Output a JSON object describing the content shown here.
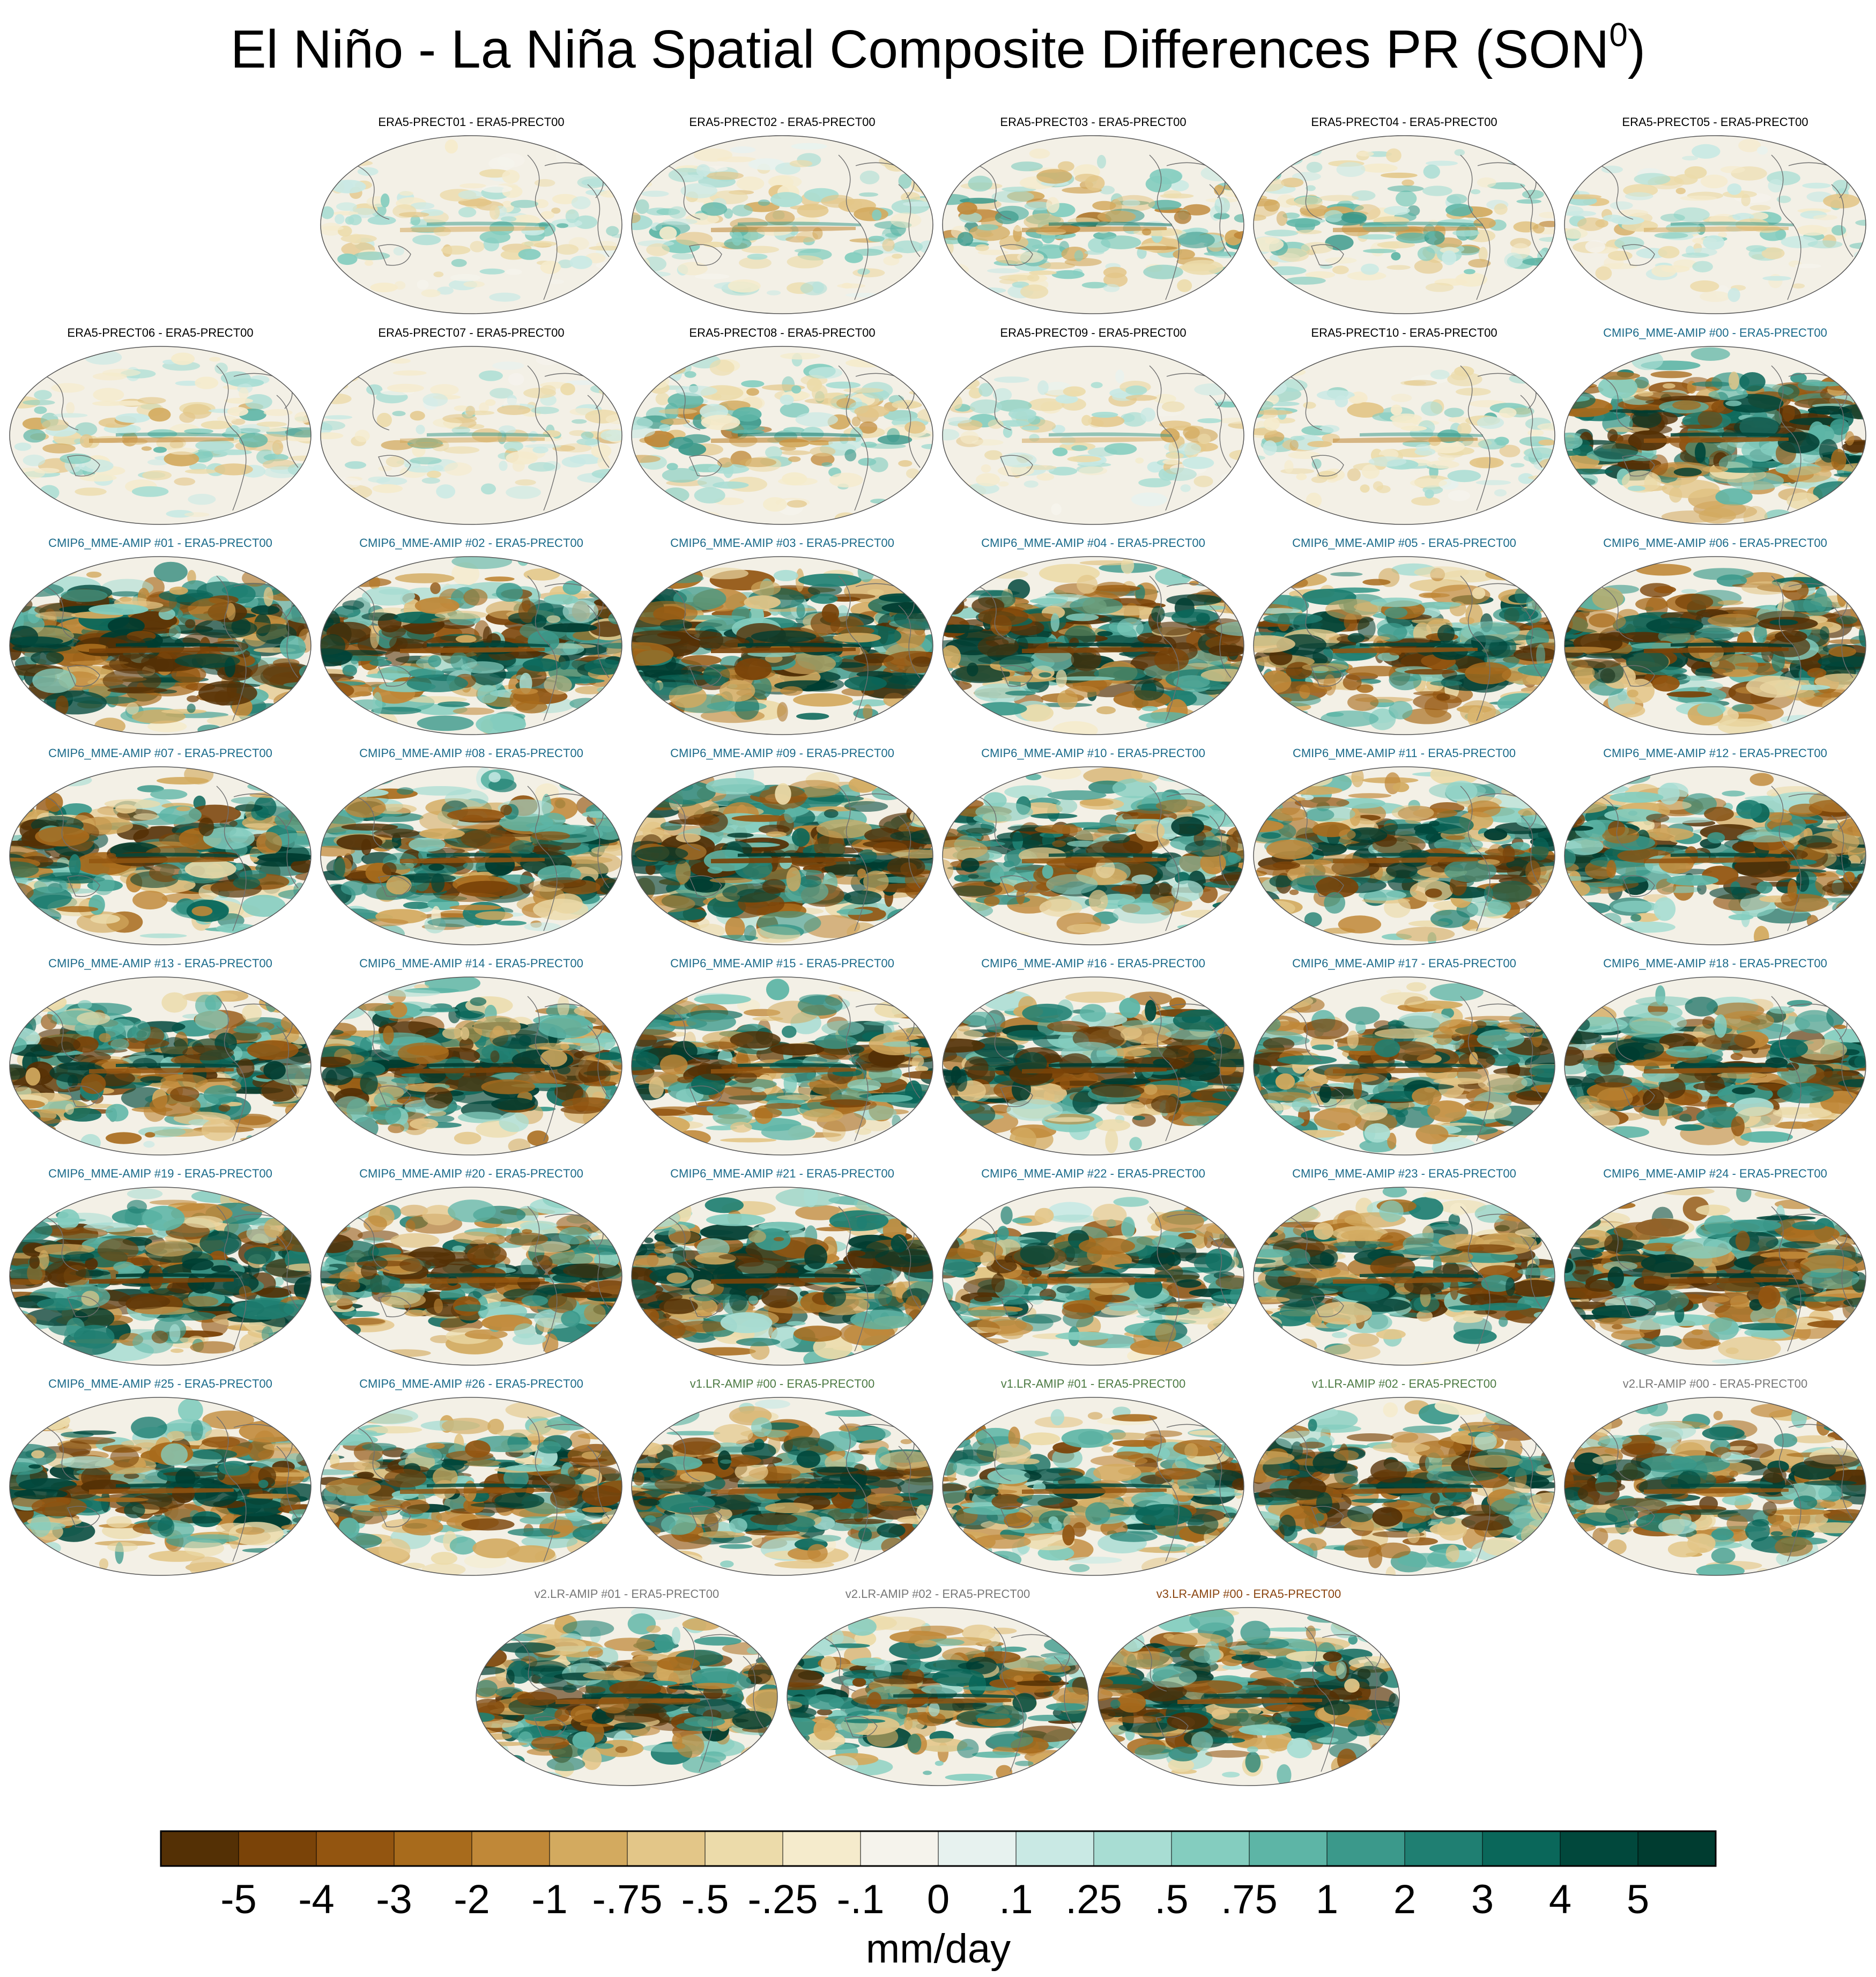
{
  "chart_data": {
    "type": "heatmap",
    "title": "El Niño - La Niña Spatial Composite Differences PR (SON",
    "title_superscript": "0",
    "title_close": ")",
    "projection": "Robinson (Pacific-centered global map)",
    "colorbar": {
      "unit": "mm/day",
      "tick_labels": [
        "-5",
        "-4",
        "-3",
        "-2",
        "-1",
        "-.75",
        "-.5",
        "-.25",
        "-.1",
        "0",
        ".1",
        ".25",
        ".5",
        ".75",
        "1",
        "2",
        "3",
        "4",
        "5"
      ],
      "colors": [
        "#543005",
        "#7a4308",
        "#935510",
        "#a86b1c",
        "#c08838",
        "#d3aa5f",
        "#e3c688",
        "#ecdbaa",
        "#f5ebcc",
        "#f5f3ec",
        "#e7f2ef",
        "#c9e9e4",
        "#a8ddd3",
        "#84cdbf",
        "#5db5a6",
        "#3b998b",
        "#1f7f72",
        "#0a675a",
        "#01483c",
        "#003c30"
      ]
    },
    "panels": [
      {
        "label": "ERA5-PRECT01 - ERA5-PRECT00",
        "group": "ERA5",
        "intensity": 0.3
      },
      {
        "label": "ERA5-PRECT02 - ERA5-PRECT00",
        "group": "ERA5",
        "intensity": 0.35
      },
      {
        "label": "ERA5-PRECT03 - ERA5-PRECT00",
        "group": "ERA5",
        "intensity": 0.45
      },
      {
        "label": "ERA5-PRECT04 - ERA5-PRECT00",
        "group": "ERA5",
        "intensity": 0.4
      },
      {
        "label": "ERA5-PRECT05 - ERA5-PRECT00",
        "group": "ERA5",
        "intensity": 0.3
      },
      {
        "label": "ERA5-PRECT06 - ERA5-PRECT00",
        "group": "ERA5",
        "intensity": 0.35
      },
      {
        "label": "ERA5-PRECT07 - ERA5-PRECT00",
        "group": "ERA5",
        "intensity": 0.3
      },
      {
        "label": "ERA5-PRECT08 - ERA5-PRECT00",
        "group": "ERA5",
        "intensity": 0.45
      },
      {
        "label": "ERA5-PRECT09 - ERA5-PRECT00",
        "group": "ERA5",
        "intensity": 0.3
      },
      {
        "label": "ERA5-PRECT10 - ERA5-PRECT00",
        "group": "ERA5",
        "intensity": 0.35
      },
      {
        "label": "CMIP6_MME-AMIP  #00 - ERA5-PRECT00",
        "group": "CMIP6",
        "intensity": 0.9
      },
      {
        "label": "CMIP6_MME-AMIP  #01 - ERA5-PRECT00",
        "group": "CMIP6",
        "intensity": 1.0
      },
      {
        "label": "CMIP6_MME-AMIP  #02 - ERA5-PRECT00",
        "group": "CMIP6",
        "intensity": 0.9
      },
      {
        "label": "CMIP6_MME-AMIP  #03 - ERA5-PRECT00",
        "group": "CMIP6",
        "intensity": 1.0
      },
      {
        "label": "CMIP6_MME-AMIP  #04 - ERA5-PRECT00",
        "group": "CMIP6",
        "intensity": 0.95
      },
      {
        "label": "CMIP6_MME-AMIP  #05 - ERA5-PRECT00",
        "group": "CMIP6",
        "intensity": 0.9
      },
      {
        "label": "CMIP6_MME-AMIP  #06 - ERA5-PRECT00",
        "group": "CMIP6",
        "intensity": 0.95
      },
      {
        "label": "CMIP6_MME-AMIP  #07 - ERA5-PRECT00",
        "group": "CMIP6",
        "intensity": 0.85
      },
      {
        "label": "CMIP6_MME-AMIP  #08 - ERA5-PRECT00",
        "group": "CMIP6",
        "intensity": 0.9
      },
      {
        "label": "CMIP6_MME-AMIP  #09 - ERA5-PRECT00",
        "group": "CMIP6",
        "intensity": 1.0
      },
      {
        "label": "CMIP6_MME-AMIP  #10 - ERA5-PRECT00",
        "group": "CMIP6",
        "intensity": 0.85
      },
      {
        "label": "CMIP6_MME-AMIP  #11 - ERA5-PRECT00",
        "group": "CMIP6",
        "intensity": 0.85
      },
      {
        "label": "CMIP6_MME-AMIP  #12 - ERA5-PRECT00",
        "group": "CMIP6",
        "intensity": 0.9
      },
      {
        "label": "CMIP6_MME-AMIP  #13 - ERA5-PRECT00",
        "group": "CMIP6",
        "intensity": 0.9
      },
      {
        "label": "CMIP6_MME-AMIP  #14 - ERA5-PRECT00",
        "group": "CMIP6",
        "intensity": 0.95
      },
      {
        "label": "CMIP6_MME-AMIP  #15 - ERA5-PRECT00",
        "group": "CMIP6",
        "intensity": 0.85
      },
      {
        "label": "CMIP6_MME-AMIP  #16 - ERA5-PRECT00",
        "group": "CMIP6",
        "intensity": 0.95
      },
      {
        "label": "CMIP6_MME-AMIP  #17 - ERA5-PRECT00",
        "group": "CMIP6",
        "intensity": 0.85
      },
      {
        "label": "CMIP6_MME-AMIP  #18 - ERA5-PRECT00",
        "group": "CMIP6",
        "intensity": 0.9
      },
      {
        "label": "CMIP6_MME-AMIP  #19 - ERA5-PRECT00",
        "group": "CMIP6",
        "intensity": 1.0
      },
      {
        "label": "CMIP6_MME-AMIP  #20 - ERA5-PRECT00",
        "group": "CMIP6",
        "intensity": 0.85
      },
      {
        "label": "CMIP6_MME-AMIP  #21 - ERA5-PRECT00",
        "group": "CMIP6",
        "intensity": 1.0
      },
      {
        "label": "CMIP6_MME-AMIP  #22 - ERA5-PRECT00",
        "group": "CMIP6",
        "intensity": 0.85
      },
      {
        "label": "CMIP6_MME-AMIP  #23 - ERA5-PRECT00",
        "group": "CMIP6",
        "intensity": 0.9
      },
      {
        "label": "CMIP6_MME-AMIP  #24 - ERA5-PRECT00",
        "group": "CMIP6",
        "intensity": 0.95
      },
      {
        "label": "CMIP6_MME-AMIP  #25 - ERA5-PRECT00",
        "group": "CMIP6",
        "intensity": 0.9
      },
      {
        "label": "CMIP6_MME-AMIP  #26 - ERA5-PRECT00",
        "group": "CMIP6",
        "intensity": 0.85
      },
      {
        "label": "v1.LR-AMIP  #00 - ERA5-PRECT00",
        "group": "v1",
        "intensity": 0.9
      },
      {
        "label": "v1.LR-AMIP  #01 - ERA5-PRECT00",
        "group": "v1",
        "intensity": 0.85
      },
      {
        "label": "v1.LR-AMIP  #02 - ERA5-PRECT00",
        "group": "v1",
        "intensity": 0.9
      },
      {
        "label": "v2.LR-AMIP  #00 - ERA5-PRECT00",
        "group": "v2",
        "intensity": 0.85
      },
      {
        "label": "v2.LR-AMIP  #01 - ERA5-PRECT00",
        "group": "v2",
        "intensity": 0.9
      },
      {
        "label": "v2.LR-AMIP  #02 - ERA5-PRECT00",
        "group": "v2",
        "intensity": 0.85
      },
      {
        "label": "v3.LR-AMIP  #00 - ERA5-PRECT00",
        "group": "v3",
        "intensity": 0.9
      }
    ],
    "label_colors": {
      "ERA5": "#000000",
      "CMIP6": "#1a6a8a",
      "v1": "#4c7a43",
      "v2": "#777777",
      "v3": "#8a4510"
    }
  }
}
